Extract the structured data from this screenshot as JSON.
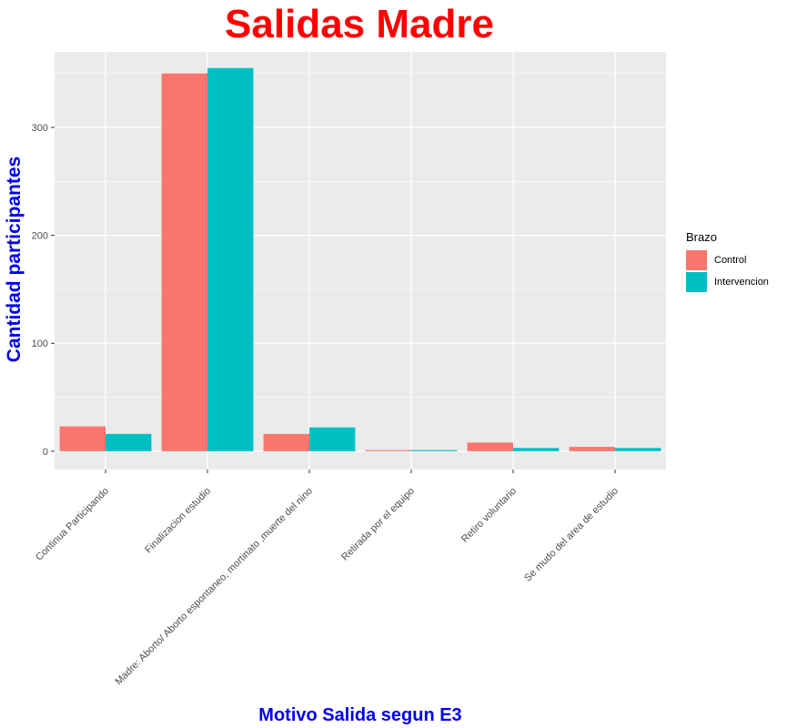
{
  "colors": {
    "title": "#FF0000",
    "axis_title": "#0000EE",
    "panel_bg": "#EBEBEB",
    "grid": "#FFFFFF",
    "tick_text": "#4D4D4D"
  },
  "chart_data": {
    "type": "bar",
    "title": "Salidas Madre",
    "xlabel": "Motivo Salida segun E3",
    "ylabel": "Cantidad participantes",
    "legend_title": "Brazo",
    "legend_position": "right",
    "grid": true,
    "ylim": [
      -17,
      370
    ],
    "yticks": [
      0,
      100,
      200,
      300
    ],
    "categories": [
      "Continua Participando",
      "Finalizacion estudio",
      "Madre: Aborto/ Aborto espontaneo, mortinato ,muerte del nino",
      "Retirada por el equipo",
      "Retiro voluntario",
      "Se mudo del area de estudio"
    ],
    "series": [
      {
        "name": "Control",
        "color": "#F8766D",
        "values": [
          23,
          350,
          16,
          1,
          8,
          4
        ]
      },
      {
        "name": "Intervencion",
        "color": "#00BFC4",
        "values": [
          16,
          355,
          22,
          1,
          3,
          3
        ]
      }
    ]
  }
}
